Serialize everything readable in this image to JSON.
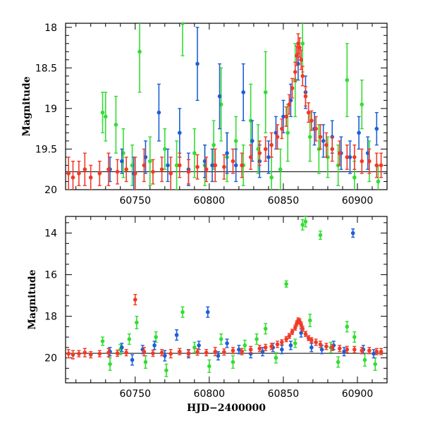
{
  "chart_data": [
    {
      "type": "scatter",
      "title": "",
      "xlabel": "",
      "ylabel": "Magnitude",
      "xlim": [
        60703,
        60920
      ],
      "ylim": [
        20.0,
        17.95
      ],
      "y_inverted": true,
      "xticks": [
        60750,
        60800,
        60850,
        60900
      ],
      "xtick_labels": [
        "60750",
        "60800",
        "60850",
        "60900"
      ],
      "yticks": [
        18,
        18.5,
        19,
        19.5,
        20
      ],
      "ytick_labels": [
        "18",
        "18.5",
        "19",
        "19.5",
        "20"
      ],
      "baseline": 19.78,
      "series": [
        {
          "color": "#33dd33",
          "x": [
            60728,
            60730,
            60737,
            60742,
            60748,
            60753,
            60760,
            60770,
            60778,
            60782,
            60790,
            60797,
            60803,
            60808,
            60812,
            60818,
            60823,
            60828,
            60833,
            60838,
            60842,
            60848,
            60853,
            60858,
            60863,
            60868,
            60874,
            60880,
            60887,
            60893,
            60898,
            60903,
            60908,
            60914
          ],
          "y": [
            19.05,
            19.1,
            19.2,
            19.55,
            19.7,
            18.3,
            19.65,
            19.5,
            19.7,
            17.95,
            19.55,
            19.7,
            19.45,
            18.95,
            19.6,
            19.4,
            19.7,
            19.15,
            19.5,
            18.8,
            19.85,
            19.75,
            19.3,
            18.65,
            18.2,
            19.35,
            19.5,
            19.6,
            19.7,
            18.65,
            19.85,
            18.95,
            19.65,
            19.9
          ],
          "err": [
            0.25,
            0.3,
            0.35,
            0.3,
            0.25,
            0.5,
            0.3,
            0.25,
            0.3,
            0.4,
            0.3,
            0.25,
            0.3,
            0.45,
            0.3,
            0.3,
            0.25,
            0.45,
            0.3,
            0.5,
            0.25,
            0.25,
            0.35,
            0.45,
            0.35,
            0.3,
            0.3,
            0.25,
            0.25,
            0.45,
            0.2,
            0.3,
            0.25,
            0.2
          ]
        },
        {
          "color": "#1d5fd6",
          "x": [
            60733,
            60741,
            60749,
            60757,
            60766,
            60772,
            60780,
            60786,
            60792,
            60797,
            60802,
            60807,
            60812,
            60818,
            60823,
            60829,
            60834,
            60840,
            60845,
            60850,
            60855,
            60860,
            60865,
            60871,
            60877,
            60883,
            60889,
            60895,
            60901,
            60907,
            60913
          ],
          "y": [
            19.75,
            19.65,
            19.8,
            19.6,
            19.05,
            19.7,
            19.3,
            19.75,
            18.45,
            19.65,
            19.7,
            18.85,
            19.55,
            19.7,
            18.8,
            19.4,
            19.65,
            19.6,
            19.3,
            19.1,
            18.9,
            18.45,
            18.8,
            19.25,
            19.4,
            19.35,
            19.55,
            19.6,
            19.3,
            19.55,
            19.25
          ],
          "err": [
            0.15,
            0.15,
            0.2,
            0.2,
            0.35,
            0.2,
            0.3,
            0.2,
            0.45,
            0.2,
            0.2,
            0.4,
            0.25,
            0.2,
            0.35,
            0.25,
            0.2,
            0.2,
            0.2,
            0.2,
            0.2,
            0.2,
            0.2,
            0.2,
            0.2,
            0.2,
            0.2,
            0.2,
            0.2,
            0.2,
            0.2
          ]
        },
        {
          "color": "#f03a26",
          "x": [
            60705,
            60708,
            60712,
            60716,
            60720,
            60726,
            60732,
            60738,
            60744,
            60750,
            60756,
            60762,
            60768,
            60774,
            60780,
            60786,
            60792,
            60798,
            60804,
            60810,
            60816,
            60822,
            60828,
            60834,
            60838,
            60842,
            60846,
            60849,
            60852,
            60854,
            60856,
            60858,
            60859,
            60860,
            60861,
            60862,
            60863,
            60865,
            60867,
            60869,
            60872,
            60875,
            60879,
            60883,
            60888,
            60893,
            60898,
            60903,
            60908,
            60913,
            60916
          ],
          "y": [
            19.8,
            19.85,
            19.8,
            19.75,
            19.85,
            19.8,
            19.75,
            19.78,
            19.75,
            19.8,
            19.7,
            19.78,
            19.75,
            19.8,
            19.7,
            19.78,
            19.72,
            19.75,
            19.7,
            19.72,
            19.65,
            19.7,
            19.6,
            19.55,
            19.5,
            19.45,
            19.35,
            19.25,
            19.1,
            18.95,
            18.75,
            18.55,
            18.35,
            18.2,
            18.25,
            18.4,
            18.6,
            18.85,
            19.05,
            19.15,
            19.25,
            19.35,
            19.45,
            19.5,
            19.55,
            19.6,
            19.6,
            19.65,
            19.65,
            19.7,
            19.7
          ],
          "err": [
            0.2,
            0.2,
            0.15,
            0.2,
            0.15,
            0.15,
            0.2,
            0.15,
            0.15,
            0.2,
            0.2,
            0.15,
            0.15,
            0.2,
            0.15,
            0.15,
            0.15,
            0.15,
            0.2,
            0.15,
            0.15,
            0.15,
            0.15,
            0.15,
            0.15,
            0.15,
            0.15,
            0.12,
            0.12,
            0.12,
            0.12,
            0.12,
            0.12,
            0.12,
            0.12,
            0.12,
            0.12,
            0.12,
            0.12,
            0.12,
            0.15,
            0.15,
            0.15,
            0.15,
            0.15,
            0.15,
            0.15,
            0.15,
            0.15,
            0.15,
            0.15
          ]
        }
      ]
    },
    {
      "type": "scatter",
      "title": "",
      "xlabel": "HJD−2400000",
      "ylabel": "Magnitude",
      "xlim": [
        60703,
        60920
      ],
      "ylim": [
        21.2,
        13.2
      ],
      "y_inverted": true,
      "xticks": [
        60750,
        60800,
        60850,
        60900
      ],
      "xtick_labels": [
        "60750",
        "60800",
        "60850",
        "60900"
      ],
      "yticks": [
        14,
        16,
        18,
        20
      ],
      "ytick_labels": [
        "14",
        "16",
        "18",
        "20"
      ],
      "baseline": 19.78,
      "series": [
        {
          "color": "#33dd33",
          "x": [
            60728,
            60733,
            60740,
            60746,
            60751,
            60757,
            60764,
            60771,
            60782,
            60790,
            60800,
            60808,
            60816,
            60824,
            60832,
            60838,
            60845,
            60852,
            60858,
            60863,
            60865,
            60868,
            60875,
            60882,
            60887,
            60893,
            60898,
            60905,
            60912
          ],
          "y": [
            19.2,
            20.3,
            19.6,
            19.1,
            18.3,
            20.2,
            19.0,
            20.6,
            17.8,
            19.5,
            20.4,
            19.1,
            20.2,
            19.4,
            19.1,
            18.6,
            20.0,
            16.45,
            19.3,
            13.6,
            13.45,
            18.2,
            14.1,
            19.5,
            20.2,
            18.5,
            19.0,
            20.1,
            20.3
          ],
          "err": [
            0.2,
            0.3,
            0.25,
            0.25,
            0.3,
            0.3,
            0.25,
            0.3,
            0.25,
            0.25,
            0.3,
            0.25,
            0.3,
            0.25,
            0.25,
            0.25,
            0.25,
            0.15,
            0.2,
            0.25,
            0.25,
            0.3,
            0.2,
            0.25,
            0.25,
            0.25,
            0.25,
            0.3,
            0.3
          ]
        },
        {
          "color": "#1d5fd6",
          "x": [
            60733,
            60741,
            60748,
            60755,
            60763,
            60770,
            60778,
            60786,
            60793,
            60799,
            60806,
            60812,
            60820,
            60828,
            60836,
            60843,
            60849,
            60855,
            60862,
            60869,
            60876,
            60884,
            60891,
            60897,
            60904,
            60911
          ],
          "y": [
            19.7,
            19.5,
            20.1,
            19.6,
            19.4,
            19.9,
            18.9,
            19.8,
            19.4,
            17.8,
            19.9,
            19.3,
            19.6,
            19.8,
            19.7,
            19.5,
            19.6,
            19.4,
            18.8,
            19.5,
            19.6,
            19.4,
            19.7,
            14.0,
            19.6,
            19.8
          ],
          "err": [
            0.2,
            0.2,
            0.25,
            0.2,
            0.2,
            0.25,
            0.25,
            0.2,
            0.2,
            0.25,
            0.2,
            0.2,
            0.2,
            0.2,
            0.2,
            0.2,
            0.2,
            0.2,
            0.2,
            0.2,
            0.2,
            0.2,
            0.2,
            0.2,
            0.2,
            0.2
          ]
        },
        {
          "color": "#f03a26",
          "x": [
            60705,
            60708,
            60712,
            60716,
            60720,
            60726,
            60732,
            60738,
            60744,
            60750,
            60756,
            60762,
            60768,
            60774,
            60780,
            60786,
            60792,
            60798,
            60804,
            60810,
            60816,
            60822,
            60828,
            60834,
            60838,
            60842,
            60846,
            60849,
            60852,
            60854,
            60856,
            60858,
            60859,
            60860,
            60861,
            60862,
            60863,
            60865,
            60867,
            60869,
            60872,
            60875,
            60879,
            60883,
            60888,
            60893,
            60898,
            60903,
            60908,
            60913,
            60916
          ],
          "y": [
            19.8,
            19.85,
            19.8,
            19.75,
            19.85,
            19.8,
            19.75,
            19.78,
            19.75,
            17.2,
            19.7,
            19.78,
            19.75,
            19.8,
            19.7,
            19.78,
            19.72,
            19.75,
            19.7,
            19.72,
            19.65,
            19.7,
            19.6,
            19.55,
            19.5,
            19.45,
            19.35,
            19.25,
            19.1,
            18.95,
            18.75,
            18.55,
            18.35,
            18.2,
            18.25,
            18.4,
            18.6,
            18.85,
            19.05,
            19.15,
            19.25,
            19.35,
            19.45,
            19.5,
            19.55,
            19.6,
            19.6,
            19.65,
            19.65,
            19.7,
            19.7
          ],
          "err": [
            0.2,
            0.2,
            0.15,
            0.2,
            0.15,
            0.15,
            0.2,
            0.15,
            0.15,
            0.25,
            0.2,
            0.15,
            0.15,
            0.2,
            0.15,
            0.15,
            0.15,
            0.15,
            0.2,
            0.15,
            0.15,
            0.15,
            0.15,
            0.15,
            0.15,
            0.15,
            0.15,
            0.12,
            0.12,
            0.12,
            0.12,
            0.12,
            0.12,
            0.12,
            0.12,
            0.12,
            0.12,
            0.12,
            0.12,
            0.12,
            0.15,
            0.15,
            0.15,
            0.15,
            0.15,
            0.15,
            0.15,
            0.15,
            0.15,
            0.15,
            0.15
          ]
        }
      ]
    }
  ]
}
